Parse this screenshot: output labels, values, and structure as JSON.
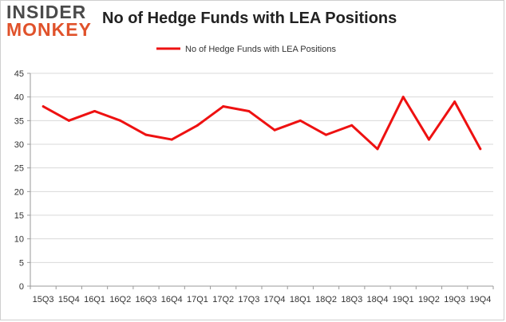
{
  "logo": {
    "line1": "INSIDER",
    "line2": "MONKEY"
  },
  "chart_data": {
    "type": "line",
    "title": "No of Hedge Funds with LEA Positions",
    "xlabel": "",
    "ylabel": "",
    "categories": [
      "15Q3",
      "15Q4",
      "16Q1",
      "16Q2",
      "16Q3",
      "16Q4",
      "17Q1",
      "17Q2",
      "17Q3",
      "17Q4",
      "18Q1",
      "18Q2",
      "18Q3",
      "18Q4",
      "19Q1",
      "19Q2",
      "19Q3",
      "19Q4"
    ],
    "series": [
      {
        "name": "No of Hedge Funds with LEA Positions",
        "values": [
          38,
          35,
          37,
          35,
          32,
          31,
          34,
          38,
          37,
          33,
          35,
          32,
          34,
          29,
          40,
          31,
          39,
          29
        ],
        "color": "#ee1111"
      }
    ],
    "ylim": [
      0,
      45
    ],
    "yticks": [
      0,
      5,
      10,
      15,
      20,
      25,
      30,
      35,
      40,
      45
    ],
    "grid": true,
    "legend": "top-center"
  }
}
